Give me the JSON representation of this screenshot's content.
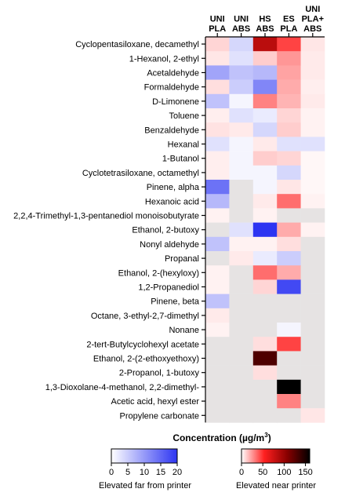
{
  "chart_data": {
    "type": "heatmap",
    "columns": [
      [
        "UNI",
        "PLA"
      ],
      [
        "UNI",
        "ABS"
      ],
      [
        "HS",
        "ABS"
      ],
      [
        "ES",
        "PLA"
      ],
      [
        "UNI",
        "PLA+",
        "ABS"
      ]
    ],
    "rows": [
      "Cyclopentasiloxane, decamethyl",
      "1-Hexanol, 2-ethyl",
      "Acetaldehyde",
      "Formaldehyde",
      "D-Limonene",
      "Toluene",
      "Benzaldehyde",
      "Hexanal",
      "1-Butanol",
      "Cyclotetrasiloxane, octamethyl",
      "Pinene, alpha",
      "Hexanoic acid",
      "2,2,4-Trimethyl-1,3-pentanediol monoisobutyrate",
      "Ethanol, 2-butoxy",
      "Nonyl aldehyde",
      "Propanal",
      "Ethanol, 2-(hexyloxy)",
      "1,2-Propanediol",
      "Pinene, beta",
      "Octane, 3-ethyl-2,7-dimethyl",
      "Nonane",
      "2-tert-Butylcyclohexyl acetate",
      "Ethanol, 2-(2-ethoxyethoxy)",
      "2-Propanol, 1-butoxy",
      "1,3-Dioxolane-4-methanol, 2,2-dimethyl-",
      "Acetic acid, hexyl ester",
      "Propylene carbonate"
    ],
    "cells": [
      [
        {
          "s": "near",
          "v": 10
        },
        {
          "s": "far",
          "v": 4
        },
        {
          "s": "near",
          "v": 85
        },
        {
          "s": "near",
          "v": 45
        },
        {
          "s": "near",
          "v": 6
        }
      ],
      [
        {
          "s": "near",
          "v": 6
        },
        {
          "s": "far",
          "v": 3
        },
        {
          "s": "near",
          "v": 12
        },
        {
          "s": "near",
          "v": 25
        },
        {
          "s": "near",
          "v": 5
        }
      ],
      [
        {
          "s": "far",
          "v": 9
        },
        {
          "s": "far",
          "v": 6
        },
        {
          "s": "far",
          "v": 7
        },
        {
          "s": "near",
          "v": 22
        },
        {
          "s": "near",
          "v": 5
        }
      ],
      [
        {
          "s": "near",
          "v": 8
        },
        {
          "s": "far",
          "v": 5
        },
        {
          "s": "far",
          "v": 12
        },
        {
          "s": "near",
          "v": 20
        },
        {
          "s": "near",
          "v": 4
        }
      ],
      [
        {
          "s": "far",
          "v": 6
        },
        {
          "s": "far",
          "v": 1
        },
        {
          "s": "near",
          "v": 30
        },
        {
          "s": "near",
          "v": 18
        },
        {
          "s": "near",
          "v": 5
        }
      ],
      [
        {
          "s": "near",
          "v": 4
        },
        {
          "s": "far",
          "v": 3
        },
        {
          "s": "far",
          "v": 2
        },
        {
          "s": "near",
          "v": 10
        },
        {
          "s": "near",
          "v": 3
        }
      ],
      [
        {
          "s": "near",
          "v": 7
        },
        {
          "s": "near",
          "v": 5
        },
        {
          "s": "far",
          "v": 4
        },
        {
          "s": "near",
          "v": 12
        },
        {
          "s": "near",
          "v": 3
        }
      ],
      [
        {
          "s": "far",
          "v": 3
        },
        {
          "s": "far",
          "v": 1
        },
        {
          "s": "near",
          "v": 5
        },
        {
          "s": "far",
          "v": 3
        },
        {
          "s": "far",
          "v": 3
        }
      ],
      [
        {
          "s": "near",
          "v": 4
        },
        {
          "s": "far",
          "v": 1
        },
        {
          "s": "near",
          "v": 12
        },
        {
          "s": "near",
          "v": 10
        },
        {
          "s": "near",
          "v": 2
        }
      ],
      [
        {
          "s": "near",
          "v": 4
        },
        {
          "s": "far",
          "v": 1
        },
        {
          "s": "far",
          "v": 1
        },
        {
          "s": "far",
          "v": 4
        },
        {
          "s": "near",
          "v": 2
        }
      ],
      [
        {
          "s": "far",
          "v": 14
        },
        {
          "s": "na"
        },
        {
          "s": "far",
          "v": 1
        },
        {
          "s": "near",
          "v": 6
        },
        {
          "s": "near",
          "v": 2
        }
      ],
      [
        {
          "s": "far",
          "v": 7
        },
        {
          "s": "na"
        },
        {
          "s": "near",
          "v": 5
        },
        {
          "s": "near",
          "v": 35
        },
        {
          "s": "near",
          "v": 3
        }
      ],
      [
        {
          "s": "near",
          "v": 3
        },
        {
          "s": "na"
        },
        {
          "s": "near",
          "v": 3
        },
        {
          "s": "na"
        },
        {
          "s": "na"
        }
      ],
      [
        {
          "s": "na"
        },
        {
          "s": "far",
          "v": 3
        },
        {
          "s": "far",
          "v": 20
        },
        {
          "s": "near",
          "v": 20
        },
        {
          "s": "near",
          "v": 3
        }
      ],
      [
        {
          "s": "far",
          "v": 6
        },
        {
          "s": "near",
          "v": 3
        },
        {
          "s": "near",
          "v": 3
        },
        {
          "s": "near",
          "v": 8
        },
        {
          "s": "na"
        }
      ],
      [
        {
          "s": "na"
        },
        {
          "s": "near",
          "v": 5
        },
        {
          "s": "far",
          "v": 2
        },
        {
          "s": "far",
          "v": 5
        },
        {
          "s": "na"
        }
      ],
      [
        {
          "s": "near",
          "v": 3
        },
        {
          "s": "na"
        },
        {
          "s": "near",
          "v": 35
        },
        {
          "s": "near",
          "v": 20
        },
        {
          "s": "na"
        }
      ],
      [
        {
          "s": "near",
          "v": 3
        },
        {
          "s": "na"
        },
        {
          "s": "near",
          "v": 10
        },
        {
          "s": "far",
          "v": 18
        },
        {
          "s": "na"
        }
      ],
      [
        {
          "s": "far",
          "v": 6
        },
        {
          "s": "na"
        },
        {
          "s": "na"
        },
        {
          "s": "na"
        },
        {
          "s": "na"
        }
      ],
      [
        {
          "s": "near",
          "v": 5
        },
        {
          "s": "na"
        },
        {
          "s": "na"
        },
        {
          "s": "na"
        },
        {
          "s": "na"
        }
      ],
      [
        {
          "s": "near",
          "v": 3
        },
        {
          "s": "na"
        },
        {
          "s": "na"
        },
        {
          "s": "far",
          "v": 1
        },
        {
          "s": "na"
        }
      ],
      [
        {
          "s": "na"
        },
        {
          "s": "na"
        },
        {
          "s": "near",
          "v": 8
        },
        {
          "s": "near",
          "v": 45
        },
        {
          "s": "na"
        }
      ],
      [
        {
          "s": "na"
        },
        {
          "s": "na"
        },
        {
          "s": "near",
          "v": 130
        },
        {
          "s": "na"
        },
        {
          "s": "na"
        }
      ],
      [
        {
          "s": "na"
        },
        {
          "s": "na"
        },
        {
          "s": "near",
          "v": 8
        },
        {
          "s": "na"
        },
        {
          "s": "na"
        }
      ],
      [
        {
          "s": "na"
        },
        {
          "s": "na"
        },
        {
          "s": "na"
        },
        {
          "s": "near",
          "v": 160
        },
        {
          "s": "na"
        }
      ],
      [
        {
          "s": "na"
        },
        {
          "s": "na"
        },
        {
          "s": "na"
        },
        {
          "s": "near",
          "v": 30
        },
        {
          "s": "na"
        }
      ],
      [
        {
          "s": "na"
        },
        {
          "s": "na"
        },
        {
          "s": "na"
        },
        {
          "s": "na"
        },
        {
          "s": "near",
          "v": 6
        }
      ]
    ],
    "colors": {
      "na": "#e6e3e3",
      "far_low": "#ffffff",
      "far_high": "#2d35f2",
      "near_stops": [
        "#ffffff",
        "#ff2020",
        "#8a0000",
        "#000000"
      ]
    },
    "legend": {
      "title_main": "Concentration (µg/m",
      "title_sup": "3",
      "title_end": ")",
      "far": {
        "range": [
          0,
          20
        ],
        "ticks": [
          0,
          5,
          10,
          15,
          20
        ],
        "label": "Elevated far from printer"
      },
      "near": {
        "range": [
          0,
          160
        ],
        "ticks": [
          0,
          50,
          100,
          150
        ],
        "label": "Elevated near printer"
      }
    }
  }
}
